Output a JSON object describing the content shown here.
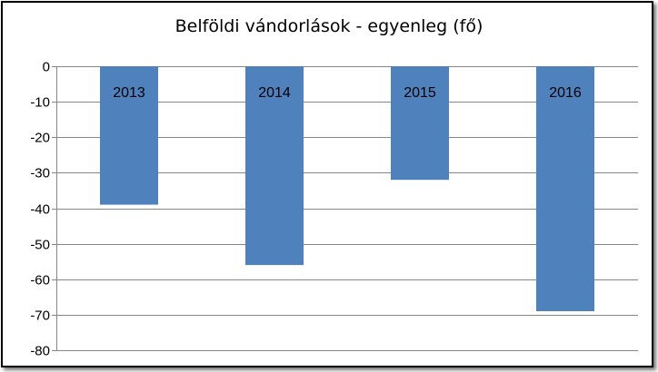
{
  "chart_data": {
    "type": "bar",
    "title": "Belföldi vándorlások  - egyenleg (fő)",
    "categories": [
      "2013",
      "2014",
      "2015",
      "2016"
    ],
    "values": [
      -39,
      -56,
      -32,
      -69
    ],
    "ylim": [
      -80,
      0
    ],
    "yticks": [
      0,
      -10,
      -20,
      -30,
      -40,
      -50,
      -60,
      -70,
      -80
    ],
    "ytick_labels": [
      "0",
      "-10",
      "-20",
      "-30",
      "-40",
      "-50",
      "-60",
      "-70",
      "-80"
    ],
    "grid": true,
    "legend": false,
    "bar_color": "#4F81BD",
    "grid_color": "#868686"
  }
}
